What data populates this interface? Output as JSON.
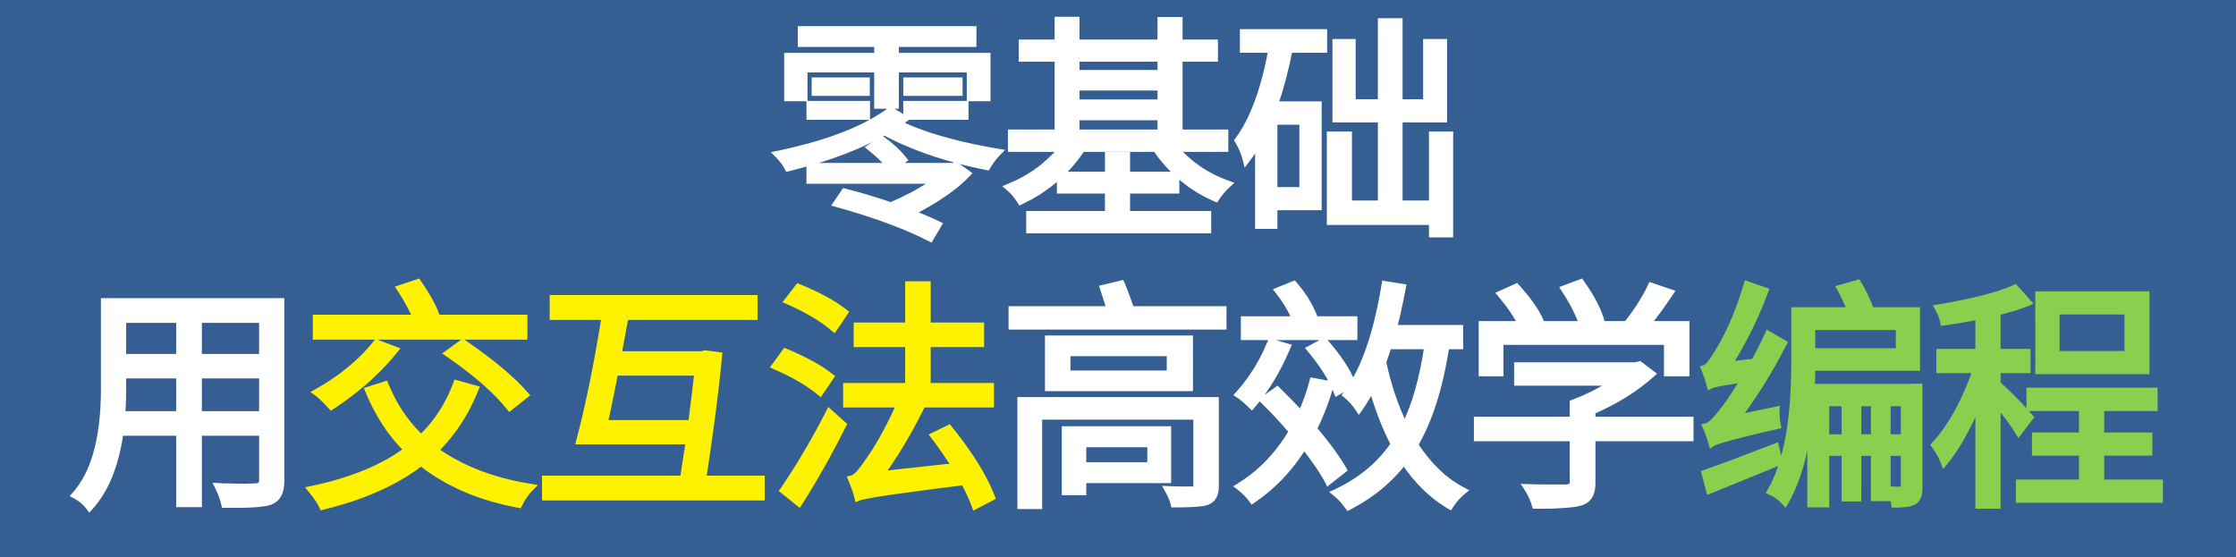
{
  "title": {
    "line1": [
      "零",
      "基",
      "础"
    ],
    "line2": [
      {
        "text": "用",
        "color": "white"
      },
      {
        "text": "交",
        "color": "yellow"
      },
      {
        "text": "互",
        "color": "yellow"
      },
      {
        "text": "法",
        "color": "yellow"
      },
      {
        "text": "高",
        "color": "white"
      },
      {
        "text": "效",
        "color": "white"
      },
      {
        "text": "学",
        "color": "white"
      },
      {
        "text": "编",
        "color": "green"
      },
      {
        "text": "程",
        "color": "green"
      }
    ]
  },
  "colors": {
    "background": "#355f92",
    "white": "#ffffff",
    "yellow": "#fff200",
    "green": "#8ccf4f"
  }
}
